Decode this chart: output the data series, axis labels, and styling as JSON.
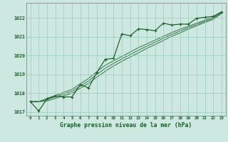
{
  "title": "Graphe pression niveau de la mer (hPa)",
  "background_color": "#cce8e0",
  "grid_color": "#99ccbb",
  "line_color": "#1a5c2a",
  "xlim": [
    -0.5,
    23.5
  ],
  "ylim": [
    1016.8,
    1022.8
  ],
  "yticks": [
    1017,
    1018,
    1019,
    1020,
    1021,
    1022
  ],
  "xtick_labels": [
    "0",
    "1",
    "2",
    "3",
    "4",
    "5",
    "6",
    "7",
    "8",
    "9",
    "10",
    "11",
    "12",
    "13",
    "14",
    "15",
    "16",
    "17",
    "18",
    "19",
    "20",
    "21",
    "22",
    "23"
  ],
  "main_series": {
    "x": [
      0,
      1,
      2,
      3,
      4,
      5,
      6,
      7,
      8,
      9,
      10,
      11,
      12,
      13,
      14,
      15,
      16,
      17,
      18,
      19,
      20,
      21,
      22,
      23
    ],
    "y": [
      1017.55,
      1017.05,
      1017.7,
      1017.85,
      1017.8,
      1017.8,
      1018.45,
      1018.28,
      1019.1,
      1019.8,
      1019.85,
      1021.15,
      1021.05,
      1021.42,
      1021.38,
      1021.32,
      1021.72,
      1021.62,
      1021.67,
      1021.67,
      1021.98,
      1022.03,
      1022.08,
      1022.32
    ]
  },
  "smooth_series": [
    {
      "x": [
        0,
        1,
        2,
        3,
        4,
        5,
        6,
        7,
        8,
        9,
        10,
        11,
        12,
        13,
        14,
        15,
        16,
        17,
        18,
        19,
        20,
        21,
        22,
        23
      ],
      "y": [
        1017.55,
        1017.55,
        1017.72,
        1017.88,
        1018.04,
        1018.2,
        1018.5,
        1018.78,
        1019.15,
        1019.48,
        1019.72,
        1019.95,
        1020.18,
        1020.42,
        1020.62,
        1020.82,
        1021.02,
        1021.22,
        1021.4,
        1021.55,
        1021.72,
        1021.88,
        1022.05,
        1022.32
      ]
    },
    {
      "x": [
        0,
        1,
        2,
        3,
        4,
        5,
        6,
        7,
        8,
        9,
        10,
        11,
        12,
        13,
        14,
        15,
        16,
        17,
        18,
        19,
        20,
        21,
        22,
        23
      ],
      "y": [
        1017.55,
        1017.55,
        1017.65,
        1017.8,
        1017.95,
        1018.1,
        1018.38,
        1018.65,
        1019.0,
        1019.32,
        1019.58,
        1019.82,
        1020.05,
        1020.28,
        1020.5,
        1020.7,
        1020.92,
        1021.12,
        1021.3,
        1021.48,
        1021.65,
        1021.82,
        1021.98,
        1022.28
      ]
    },
    {
      "x": [
        0,
        1,
        2,
        3,
        4,
        5,
        6,
        7,
        8,
        9,
        10,
        11,
        12,
        13,
        14,
        15,
        16,
        17,
        18,
        19,
        20,
        21,
        22,
        23
      ],
      "y": [
        1017.55,
        1017.55,
        1017.58,
        1017.72,
        1017.86,
        1018.0,
        1018.26,
        1018.52,
        1018.85,
        1019.16,
        1019.44,
        1019.69,
        1019.92,
        1020.14,
        1020.38,
        1020.58,
        1020.8,
        1021.02,
        1021.2,
        1021.4,
        1021.58,
        1021.76,
        1021.92,
        1022.24
      ]
    }
  ]
}
